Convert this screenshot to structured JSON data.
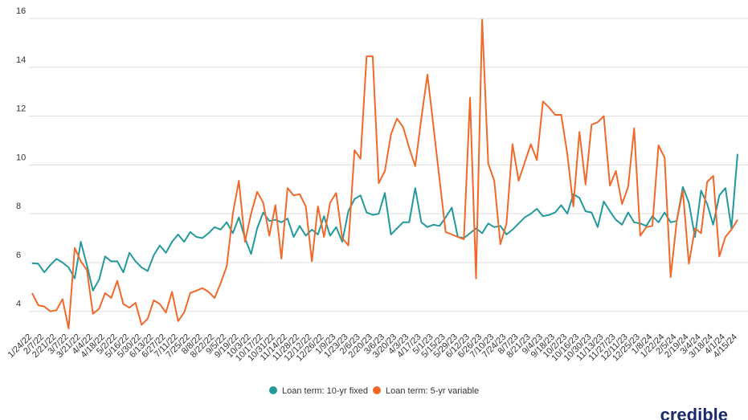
{
  "chart_data": {
    "type": "line",
    "categories": [
      "1/24/22",
      null,
      "2/7/22",
      null,
      "2/21/22",
      null,
      "3/7/22",
      null,
      "3/21/22",
      null,
      "4/4/22",
      null,
      "4/18/22",
      null,
      "5/2/22",
      null,
      "5/16/22",
      null,
      "5/30/22",
      null,
      "6/13/22",
      null,
      "6/27/22",
      null,
      "7/11/22",
      null,
      "7/25/22",
      null,
      "8/8/22",
      null,
      "8/22/22",
      null,
      "9/5/22",
      null,
      "9/19/22",
      null,
      "10/3/22",
      null,
      "10/17/22",
      null,
      "10/31/22",
      null,
      "11/14/22",
      null,
      "11/28/22",
      null,
      "12/12/22",
      null,
      "12/26/22",
      null,
      "1/9/23",
      null,
      "1/23/23",
      null,
      "2/6/23",
      null,
      "2/20/23",
      null,
      "3/6/23",
      null,
      "3/20/23",
      null,
      "4/3/23",
      null,
      "4/17/23",
      null,
      "5/1/23",
      null,
      "5/15/23",
      null,
      "5/29/23",
      null,
      "6/12/23",
      null,
      "6/26/23",
      null,
      "7/10/23",
      null,
      "7/24/23",
      null,
      "8/7/23",
      null,
      "8/21/23",
      null,
      "9/4/23",
      null,
      "9/18/23",
      null,
      "10/2/23",
      null,
      "10/16/23",
      null,
      "10/30/23",
      null,
      "11/13/23",
      null,
      "11/27/23",
      null,
      "12/11/23",
      null,
      "12/25/23",
      null,
      "1/8/24",
      null,
      "1/22/24",
      null,
      "2/5/24",
      null,
      "2/19/24",
      null,
      "3/4/24",
      null,
      "3/18/24",
      null,
      "4/1/24",
      null,
      "4/15/24"
    ],
    "series": [
      {
        "name": "Loan term: 10-yr fixed",
        "color": "#23999b",
        "values": [
          5.97,
          5.95,
          5.6,
          5.9,
          6.15,
          6.0,
          5.8,
          5.35,
          6.85,
          5.9,
          4.85,
          5.3,
          6.25,
          6.05,
          6.05,
          5.6,
          6.4,
          6.05,
          5.8,
          5.65,
          6.3,
          6.7,
          6.4,
          6.85,
          7.15,
          6.85,
          7.25,
          7.05,
          7.0,
          7.2,
          7.45,
          7.35,
          7.65,
          7.2,
          7.85,
          7.0,
          6.35,
          7.4,
          8.05,
          7.7,
          7.75,
          7.65,
          7.8,
          7.05,
          7.5,
          7.1,
          7.35,
          7.15,
          7.9,
          7.1,
          7.45,
          6.85,
          8.1,
          8.6,
          8.75,
          8.05,
          7.95,
          8.0,
          8.85,
          7.15,
          7.4,
          7.65,
          7.65,
          9.05,
          7.65,
          7.45,
          7.55,
          7.5,
          7.85,
          8.25,
          7.05,
          7.0,
          7.2,
          7.4,
          7.2,
          7.6,
          7.45,
          7.5,
          7.15,
          7.35,
          7.6,
          7.85,
          8.0,
          8.2,
          7.9,
          7.95,
          8.05,
          8.35,
          8.0,
          8.8,
          8.65,
          8.1,
          8.05,
          7.45,
          8.5,
          8.1,
          7.75,
          7.55,
          8.05,
          7.65,
          7.6,
          7.5,
          7.9,
          7.65,
          8.05,
          7.65,
          7.7,
          9.1,
          8.45,
          7.05,
          8.95,
          8.4,
          7.55,
          8.75,
          9.05,
          7.4,
          10.45
        ]
      },
      {
        "name": "Loan term: 5-yr variable",
        "color": "#f0692a",
        "values": [
          4.75,
          4.25,
          4.2,
          4.0,
          4.05,
          4.5,
          3.3,
          6.6,
          6.05,
          5.7,
          3.9,
          4.1,
          4.75,
          4.55,
          5.25,
          4.3,
          4.15,
          4.35,
          3.45,
          3.7,
          4.45,
          4.3,
          3.95,
          4.8,
          3.6,
          3.95,
          4.75,
          4.85,
          4.95,
          4.8,
          4.55,
          5.15,
          5.85,
          8.0,
          9.35,
          6.85,
          8.0,
          8.9,
          8.45,
          7.1,
          8.35,
          6.15,
          9.05,
          8.75,
          8.8,
          8.3,
          6.05,
          8.3,
          7.05,
          8.45,
          8.85,
          7.0,
          6.7,
          10.6,
          10.25,
          14.45,
          14.45,
          9.25,
          9.75,
          11.25,
          11.9,
          11.55,
          10.7,
          9.95,
          11.9,
          13.7,
          11.55,
          9.4,
          7.25,
          7.15,
          7.05,
          6.95,
          12.75,
          5.35,
          15.95,
          10.05,
          9.35,
          6.75,
          7.6,
          10.85,
          9.35,
          10.1,
          10.85,
          10.2,
          12.6,
          12.35,
          12.05,
          12.05,
          10.45,
          8.3,
          11.35,
          9.2,
          11.65,
          11.75,
          12.0,
          9.15,
          9.75,
          8.4,
          9.1,
          11.5,
          7.1,
          7.45,
          7.5,
          10.8,
          10.3,
          5.4,
          7.7,
          8.95,
          5.95,
          7.4,
          7.2,
          9.3,
          9.55,
          6.25,
          7.05,
          7.35,
          7.75
        ]
      }
    ],
    "ylim": [
      3.2,
      16
    ],
    "yticks": [
      4,
      6,
      8,
      10,
      12,
      14,
      16
    ],
    "grid": true,
    "legend": "bottom",
    "logo": "credible"
  }
}
